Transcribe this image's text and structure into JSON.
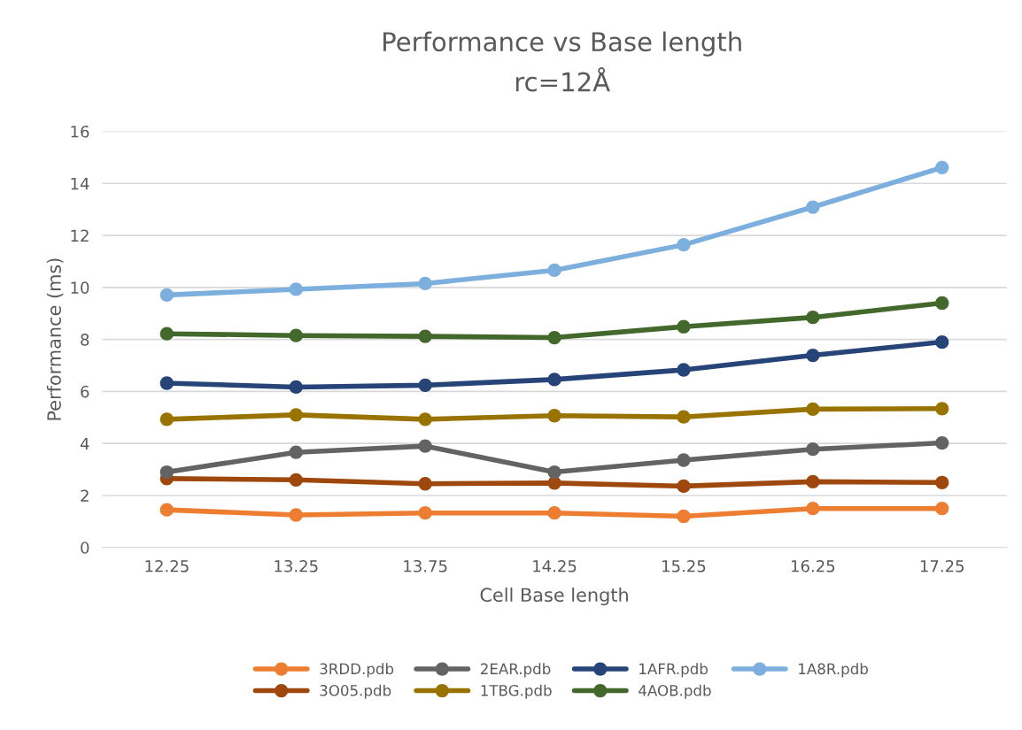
{
  "chart_data": {
    "type": "line",
    "title": "Performance vs Base length",
    "subtitle": "rc=12Å",
    "xlabel": "Cell Base length",
    "ylabel": "Performance (ms)",
    "categories": [
      "12.25",
      "13.25",
      "13.75",
      "14.25",
      "15.25",
      "16.25",
      "17.25"
    ],
    "series": [
      {
        "name": "3RDD.pdb",
        "color": "#ed7d31",
        "values": [
          1.45,
          1.25,
          1.33,
          1.33,
          1.2,
          1.5,
          1.5
        ]
      },
      {
        "name": "3O05.pdb",
        "color": "#9e480e",
        "values": [
          2.65,
          2.6,
          2.45,
          2.48,
          2.36,
          2.53,
          2.5
        ]
      },
      {
        "name": "2EAR.pdb",
        "color": "#636363",
        "values": [
          2.9,
          3.66,
          3.9,
          2.9,
          3.36,
          3.78,
          4.02
        ]
      },
      {
        "name": "1TBG.pdb",
        "color": "#997300",
        "values": [
          4.93,
          5.1,
          4.93,
          5.07,
          5.02,
          5.32,
          5.34
        ]
      },
      {
        "name": "1AFR.pdb",
        "color": "#264478",
        "values": [
          6.32,
          6.17,
          6.24,
          6.46,
          6.83,
          7.39,
          7.9
        ]
      },
      {
        "name": "4AOB.pdb",
        "color": "#43682b",
        "values": [
          8.22,
          8.15,
          8.12,
          8.07,
          8.49,
          8.85,
          9.4
        ]
      },
      {
        "name": "1A8R.pdb",
        "color": "#7cafdd",
        "values": [
          9.71,
          9.93,
          10.15,
          10.66,
          11.64,
          13.09,
          14.61
        ]
      }
    ],
    "ylim": [
      0,
      16
    ],
    "yticks": [
      0,
      2,
      4,
      6,
      8,
      10,
      12,
      14,
      16
    ],
    "grid": "y",
    "legend": "bottom",
    "marker": "circle",
    "line_style": "solid"
  }
}
